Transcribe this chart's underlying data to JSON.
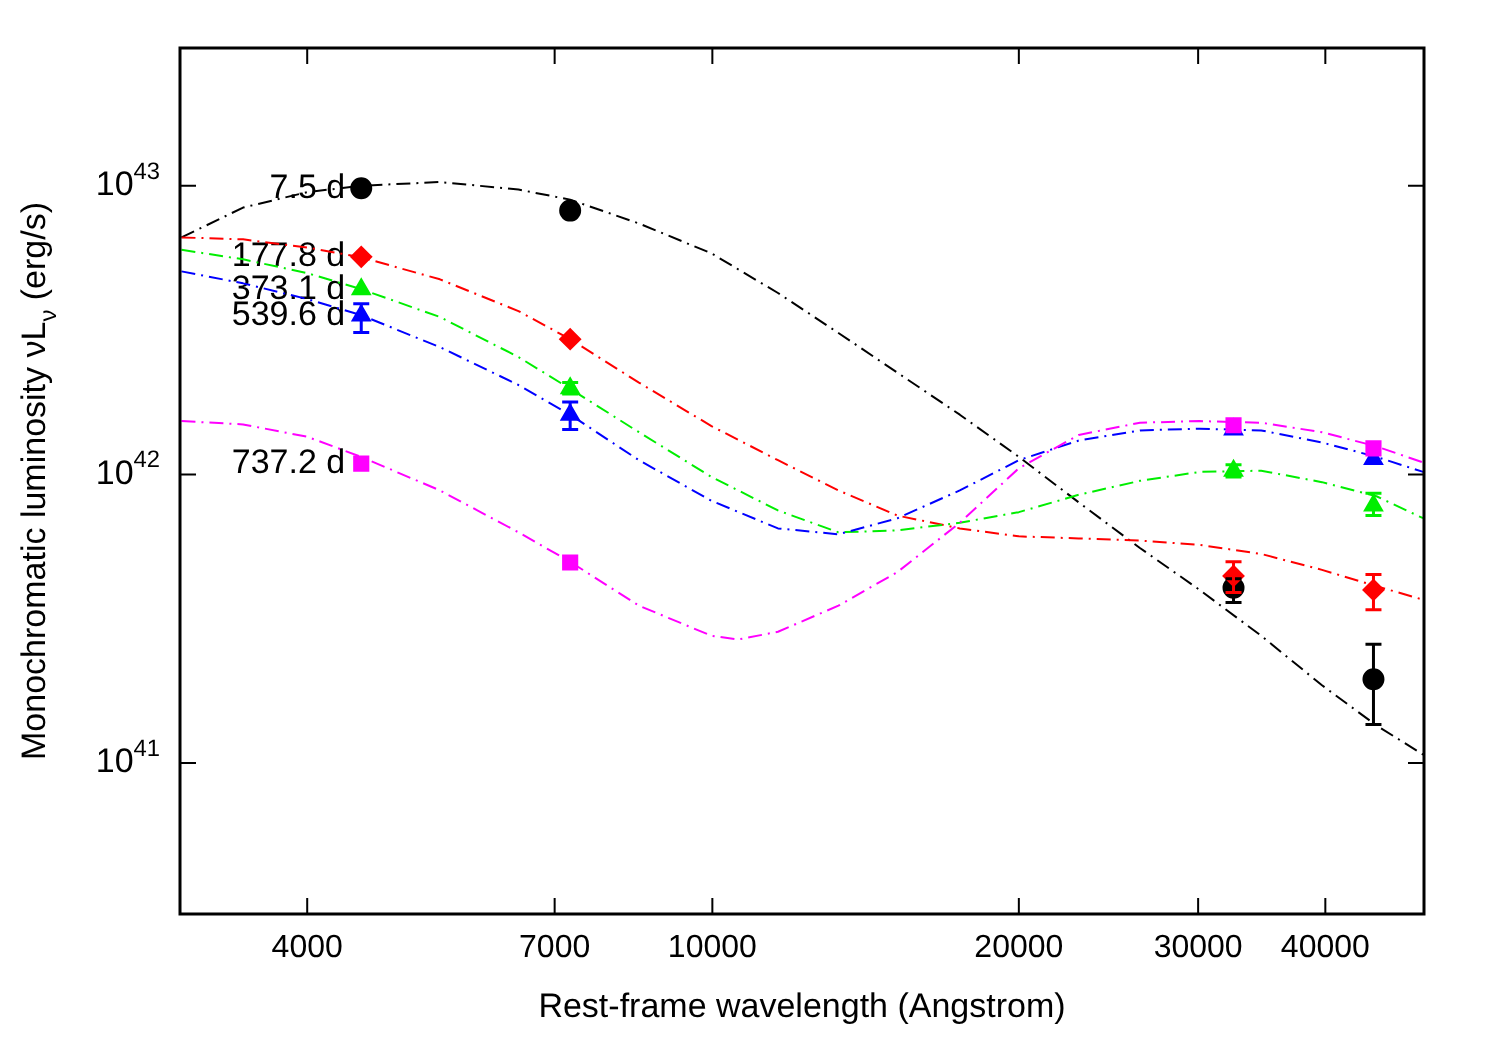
{
  "chart_data": {
    "type": "scatter",
    "xlabel": "Rest-frame wavelength (Angstrom)",
    "ylabel": "Monochromatic luminosity νL$_{ν}$ (erg/s)",
    "log": "xy",
    "xlim": [
      3000,
      50000
    ],
    "ylim": [
      3e+40,
      3e+43
    ],
    "xticks": [
      4000,
      7000,
      10000,
      20000,
      30000,
      40000
    ],
    "yticks": [
      {
        "value": 1e+41,
        "label": "10$^{41}$"
      },
      {
        "value": 1e+42,
        "label": "10$^{42}$"
      },
      {
        "value": 1e+43,
        "label": "10$^{43}$"
      }
    ],
    "grid": false,
    "legend": false,
    "line_style": "dashed",
    "series": [
      {
        "type": "line",
        "color": "#000000",
        "marker": "none",
        "x": [
          3010,
          3460,
          4000,
          4520,
          5400,
          6450,
          7250,
          8470,
          9980,
          11600,
          13300,
          15200,
          17500,
          20000,
          22900,
          26300,
          30100,
          34600,
          39700,
          44900,
          49900
        ],
        "values": [
          6.62e+42,
          8.4e+42,
          9.5e+42,
          1e+43,
          1.03e+43,
          9.7e+42,
          8.95e+42,
          7.4e+42,
          5.83e+42,
          4.25e+42,
          3.09e+42,
          2.25e+42,
          1.61e+42,
          1.15e+42,
          8e+41,
          5.56e+41,
          3.98e+41,
          2.76e+41,
          1.86e+41,
          1.35e+41,
          1.07e+41
        ]
      },
      {
        "type": "line",
        "color": "#ff0000",
        "marker": "none",
        "x": [
          3010,
          3460,
          4000,
          4520,
          5400,
          6450,
          7250,
          8470,
          9980,
          11600,
          13300,
          15200,
          17500,
          20000,
          22900,
          26300,
          30100,
          34600,
          39700,
          44900,
          49900
        ],
        "values": [
          6.62e+42,
          6.52e+42,
          6.11e+42,
          5.65e+42,
          4.74e+42,
          3.68e+42,
          2.94e+42,
          2.08e+42,
          1.47e+42,
          1.12e+42,
          8.8e+41,
          7.2e+41,
          6.5e+41,
          6.1e+41,
          6e+41,
          5.9e+41,
          5.7e+41,
          5.3e+41,
          4.67e+41,
          4.1e+41,
          3.68e+41
        ]
      },
      {
        "type": "line",
        "color": "#00ee00",
        "marker": "none",
        "x": [
          3010,
          3460,
          4000,
          4520,
          5400,
          6450,
          7250,
          8470,
          9980,
          11600,
          13300,
          15200,
          17500,
          20000,
          22900,
          26300,
          30100,
          34600,
          39700,
          44900,
          49900
        ],
        "values": [
          6e+42,
          5.56e+42,
          4.98e+42,
          4.38e+42,
          3.51e+42,
          2.55e+42,
          1.98e+42,
          1.4e+42,
          9.8e+41,
          7.5e+41,
          6.3e+41,
          6.4e+41,
          6.8e+41,
          7.4e+41,
          8.5e+41,
          9.5e+41,
          1.02e+42,
          1.03e+42,
          9.4e+41,
          8.4e+41,
          7.05e+41
        ]
      },
      {
        "type": "line",
        "color": "#0000ff",
        "marker": "none",
        "x": [
          3010,
          3460,
          4000,
          4520,
          5400,
          6450,
          7250,
          8470,
          9980,
          11600,
          13300,
          15200,
          17500,
          20000,
          22900,
          26300,
          30100,
          34600,
          39700,
          44900,
          49900
        ],
        "values": [
          5.05e+42,
          4.59e+42,
          4.05e+42,
          3.56e+42,
          2.76e+42,
          2.04e+42,
          1.61e+42,
          1.12e+42,
          8.1e+41,
          6.5e+41,
          6.2e+41,
          7.05e+41,
          8.8e+41,
          1.12e+42,
          1.31e+42,
          1.42e+42,
          1.44e+42,
          1.42e+42,
          1.29e+42,
          1.15e+42,
          1.02e+42
        ]
      },
      {
        "type": "line",
        "color": "#ff00ff",
        "marker": "none",
        "x": [
          3010,
          3460,
          4000,
          4520,
          5400,
          6450,
          7250,
          8470,
          9980,
          10600,
          11600,
          13300,
          15200,
          17500,
          20000,
          22900,
          26300,
          30100,
          34600,
          39700,
          44900,
          49900
        ],
        "values": [
          1.53e+42,
          1.49e+42,
          1.35e+42,
          1.15e+42,
          8.8e+41,
          6.3e+41,
          4.98e+41,
          3.51e+41,
          2.76e+41,
          2.68e+41,
          2.85e+41,
          3.51e+41,
          4.59e+41,
          6.8e+41,
          1.05e+42,
          1.37e+42,
          1.51e+42,
          1.53e+42,
          1.51e+42,
          1.4e+42,
          1.25e+42,
          1.1e+42
        ]
      },
      {
        "name": "7.5 d",
        "type": "scatter",
        "color": "#000000",
        "marker": "circle",
        "x": [
          4520,
          7250,
          32500,
          44600
        ],
        "values": [
          9.8e+42,
          8.2e+42,
          4.05e+41,
          1.95e+41
        ],
        "errors": [
          null,
          null,
          [
            3.6e+41,
            4.35e+41
          ],
          [
            1.36e+41,
            2.58e+41
          ]
        ]
      },
      {
        "name": "177.8 d",
        "type": "scatter",
        "color": "#ff0000",
        "marker": "diamond",
        "x": [
          4520,
          7250,
          32500,
          44600
        ],
        "values": [
          5.67e+42,
          2.94e+42,
          4.45e+41,
          3.98e+41
        ],
        "errors": [
          null,
          null,
          [
            3.9e+41,
            4.98e+41
          ],
          [
            3.4e+41,
            4.5e+41
          ]
        ]
      },
      {
        "name": "373.1 d",
        "type": "scatter",
        "color": "#00ee00",
        "marker": "triangle",
        "x": [
          4520,
          7250,
          32500,
          44600
        ],
        "values": [
          4.38e+42,
          1.99e+42,
          1.03e+42,
          7.8e+41
        ],
        "errors": [
          null,
          [
            1.9e+42,
            2.08e+42
          ],
          [
            9.8e+41,
            1.08e+42
          ],
          [
            7.2e+41,
            8.6e+41
          ]
        ]
      },
      {
        "name": "539.6 d",
        "type": "scatter",
        "color": "#0000ff",
        "marker": "triangle",
        "x": [
          4520,
          7250,
          32500,
          44600
        ],
        "values": [
          3.55e+42,
          1.61e+42,
          1.43e+42,
          1.13e+42
        ],
        "errors": [
          [
            3.1e+42,
            3.9e+42
          ],
          [
            1.43e+42,
            1.78e+42
          ],
          null,
          null
        ]
      },
      {
        "name": "737.2 d",
        "type": "scatter",
        "color": "#ff00ff",
        "marker": "square",
        "x": [
          4520,
          7250,
          32500,
          44600
        ],
        "values": [
          1.09e+42,
          4.95e+41,
          1.48e+42,
          1.23e+42
        ]
      }
    ]
  }
}
